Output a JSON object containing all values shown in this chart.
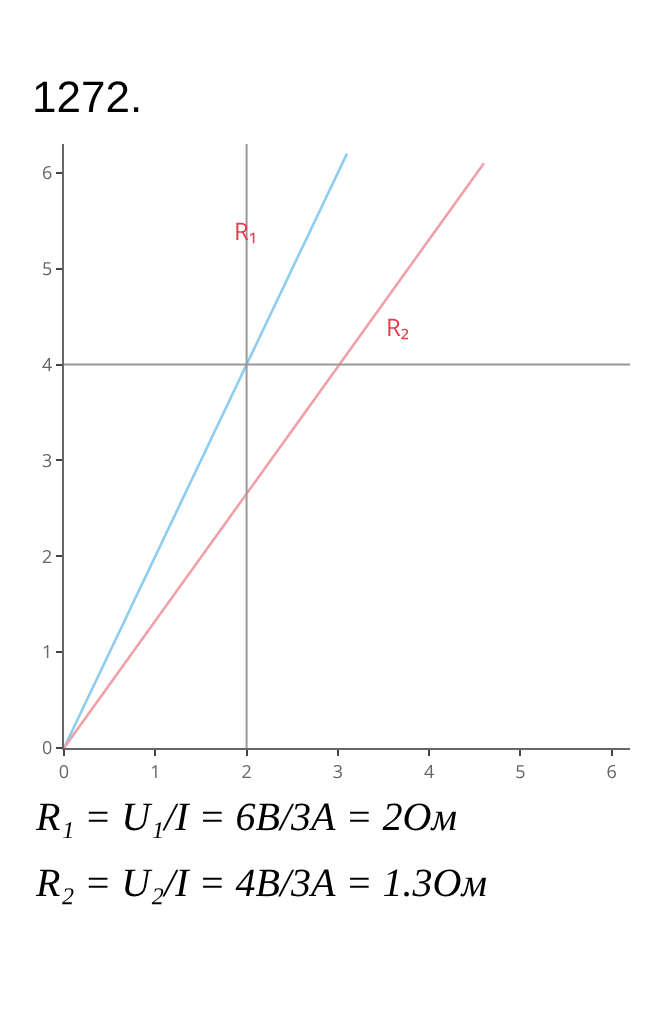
{
  "chart_data": {
    "type": "line",
    "title": "1272.",
    "series": [
      {
        "color": "#8ecdf0",
        "x": [
          0,
          3.1
        ],
        "values": [
          0,
          6.2
        ]
      },
      {
        "color": "#f0a0a8",
        "x": [
          0,
          4.6
        ],
        "values": [
          0,
          6.1
        ]
      }
    ],
    "xlim": [
      0,
      6.2
    ],
    "xticks": [
      0,
      1,
      2,
      3,
      4,
      5,
      6
    ],
    "ylim": [
      0,
      6.3
    ],
    "yticks": [
      0,
      1,
      2,
      3,
      4,
      5,
      6
    ],
    "grid": false,
    "legend": false,
    "marker": "none",
    "line_style": "solid",
    "ref_lines": [
      {
        "axis": "x",
        "value": 2,
        "color": "#999999"
      },
      {
        "axis": "y",
        "value": 4,
        "color": "#999999"
      }
    ],
    "annotations": [
      {
        "text": "R₁",
        "x": 2,
        "y": 5.4
      },
      {
        "text": "R₂",
        "x": 3.3,
        "y": 4.4
      },
      "R₁ = U₁/I = 6В/3А = 2Ом",
      "R₂ = U₂/I = 4В/3А = 1.3Ом"
    ]
  }
}
